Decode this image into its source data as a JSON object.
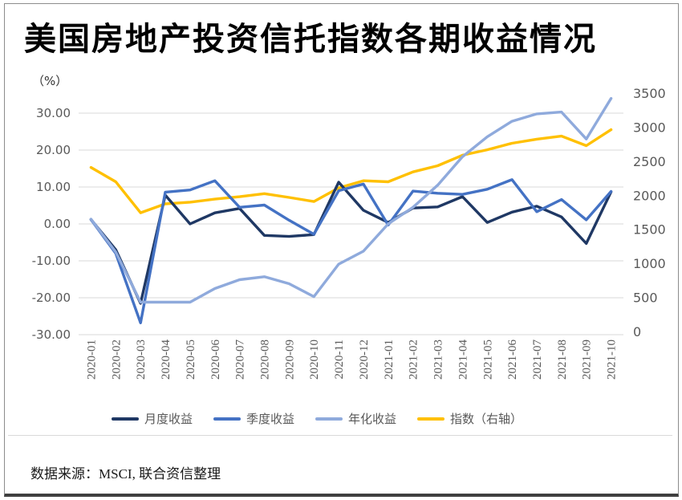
{
  "title": "美国房地产投资信托指数各期收益情况",
  "unit_label": "（%）",
  "source_note": "数据来源：MSCI, 联合资信整理",
  "colors": {
    "monthly": "#1f3864",
    "quarterly": "#4472c4",
    "annualized": "#8faadc",
    "index": "#ffc000",
    "grid": "#d9d9d9",
    "tick_text": "#595959",
    "title_text": "#000000"
  },
  "chart_data": {
    "type": "line",
    "title": "美国房地产投资信托指数各期收益情况",
    "legend_position": "bottom",
    "grid": true,
    "categories": [
      "2020-01",
      "2020-02",
      "2020-03",
      "2020-04",
      "2020-05",
      "2020-06",
      "2020-07",
      "2020-08",
      "2020-09",
      "2020-10",
      "2020-11",
      "2020-12",
      "2021-01",
      "2021-02",
      "2021-03",
      "2021-04",
      "2021-05",
      "2021-06",
      "2021-07",
      "2021-08",
      "2021-09",
      "2021-10"
    ],
    "left_axis": {
      "unit": "%",
      "min": -30,
      "max": 30,
      "values": [
        30,
        20,
        10,
        0,
        -10,
        -20,
        -30
      ],
      "labels": [
        "30.00",
        "20.00",
        "10.00",
        "0.00",
        "-10.00",
        "-20.00",
        "-30.00"
      ]
    },
    "right_axis": {
      "min": 0,
      "max": 3500,
      "values": [
        3500,
        3000,
        2500,
        2000,
        1500,
        1000,
        500,
        0
      ],
      "labels": [
        "3500",
        "3000",
        "2500",
        "2000",
        "1500",
        "1000",
        "500",
        "0"
      ]
    },
    "series": [
      {
        "id": "monthly",
        "name": "月度收益",
        "axis": "left",
        "color_key": "monthly",
        "values": [
          1.2,
          -7.0,
          -21.5,
          7.8,
          0.0,
          3.0,
          4.2,
          -3.1,
          -3.4,
          -2.9,
          11.3,
          3.7,
          0.4,
          4.3,
          4.6,
          7.4,
          0.4,
          3.2,
          4.8,
          1.9,
          -5.3,
          8.7
        ]
      },
      {
        "id": "quarterly",
        "name": "季度收益",
        "axis": "left",
        "color_key": "quarterly",
        "values": [
          1.2,
          -8.0,
          -26.8,
          8.6,
          9.2,
          11.7,
          4.5,
          5.1,
          1.0,
          -2.8,
          9.0,
          10.8,
          -0.3,
          8.9,
          8.3,
          8.0,
          9.4,
          12.0,
          3.3,
          6.6,
          1.1,
          8.8
        ]
      },
      {
        "id": "annualized",
        "name": "年化收益",
        "axis": "left",
        "color_key": "annualized",
        "values": [
          1.3,
          -7.6,
          -21.2,
          -21.2,
          -21.2,
          -17.5,
          -15.1,
          -14.3,
          -16.2,
          -19.7,
          -10.9,
          -7.4,
          0.0,
          4.5,
          10.5,
          18.2,
          23.6,
          27.8,
          29.8,
          30.3,
          23.0,
          34.0
        ]
      },
      {
        "id": "index",
        "name": "指数（右轴）",
        "axis": "right",
        "color_key": "index",
        "values": [
          2420,
          2210,
          1755,
          1885,
          1910,
          1955,
          1990,
          2035,
          1980,
          1920,
          2120,
          2225,
          2210,
          2355,
          2445,
          2600,
          2680,
          2775,
          2835,
          2880,
          2740,
          2975
        ]
      }
    ]
  }
}
